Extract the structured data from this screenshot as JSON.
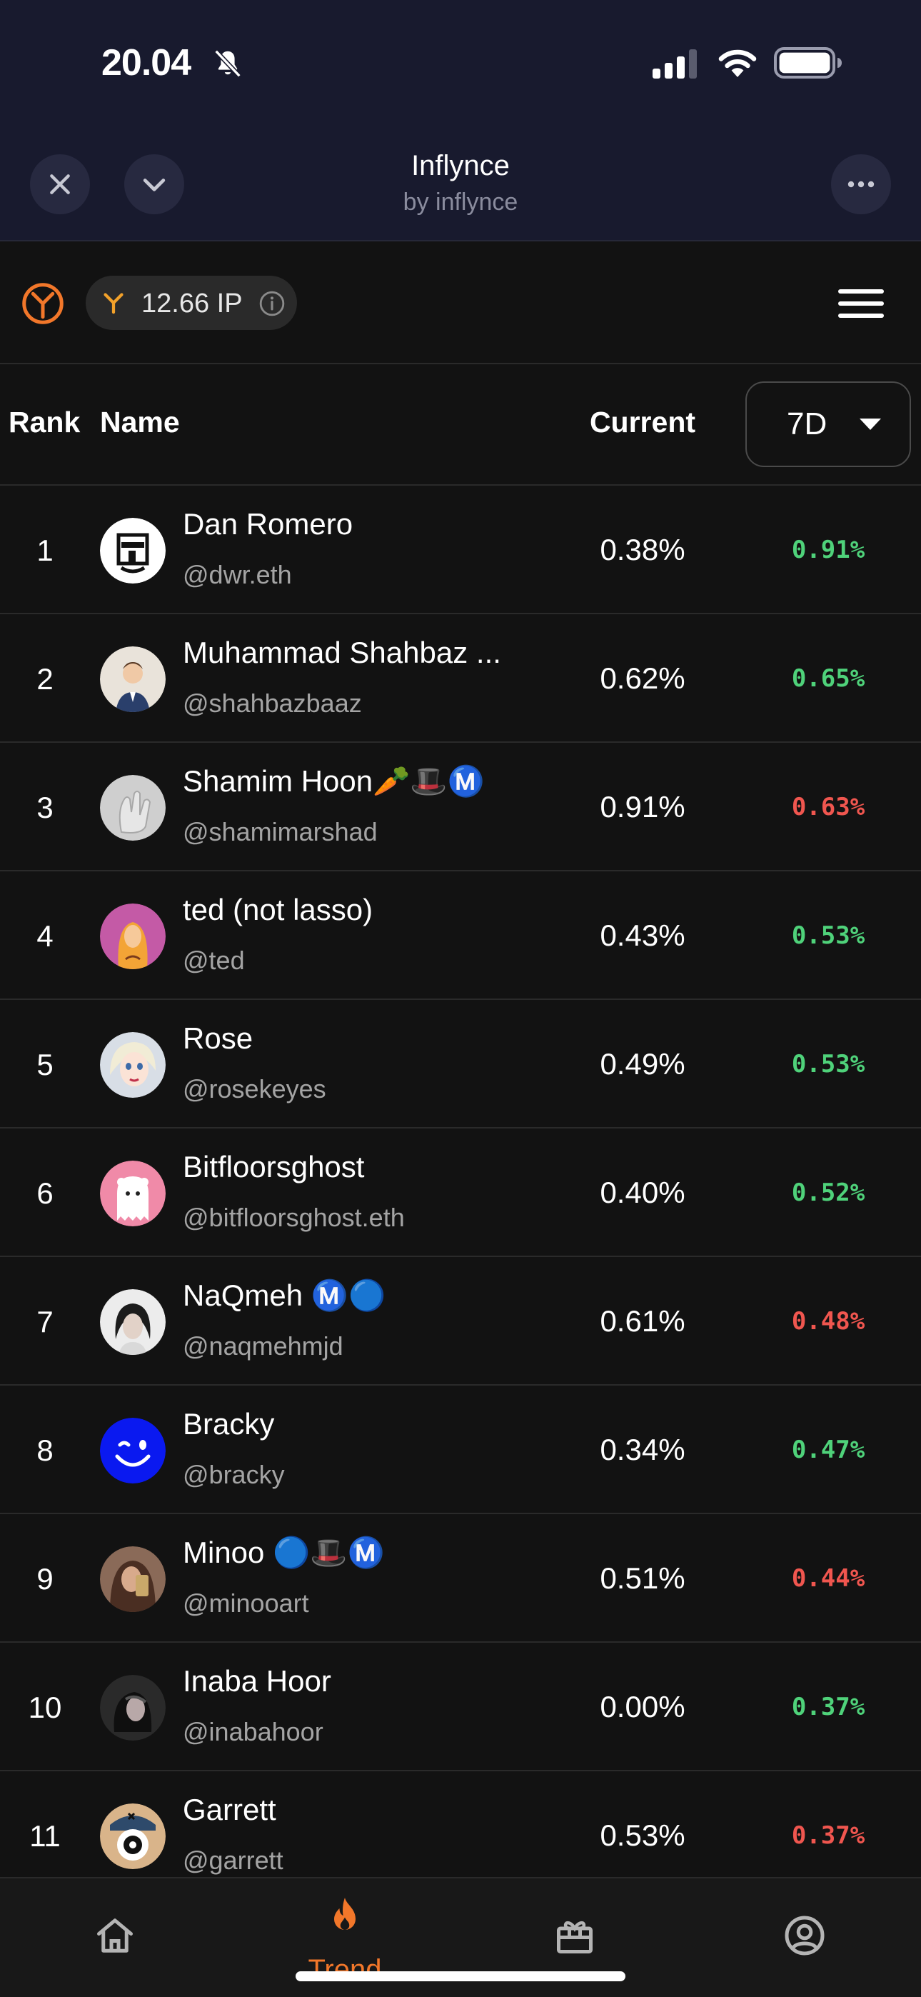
{
  "status_bar": {
    "time": "20.04"
  },
  "header": {
    "title": "Inflynce",
    "subtitle": "by inflynce"
  },
  "points": {
    "value": "12.66 IP"
  },
  "table": {
    "col_rank": "Rank",
    "col_name": "Name",
    "col_current": "Current",
    "period": "7D",
    "rows": [
      {
        "rank": "1",
        "name": "Dan Romero",
        "handle": "@dwr.eth",
        "current": "0.38%",
        "change": "0.91%",
        "trend": "up",
        "avatar": "blackwhite-face-avatar"
      },
      {
        "rank": "2",
        "name": "Muhammad Shahbaz ...",
        "handle": "@shahbazbaaz",
        "current": "0.62%",
        "change": "0.65%",
        "trend": "up",
        "avatar": "cartoon-man-avatar"
      },
      {
        "rank": "3",
        "name": "Shamim Hoon🥕🎩Ⓜ️",
        "handle": "@shamimarshad",
        "current": "0.91%",
        "change": "0.63%",
        "trend": "down",
        "avatar": "hand-avatar"
      },
      {
        "rank": "4",
        "name": "ted (not lasso)",
        "handle": "@ted",
        "current": "0.43%",
        "change": "0.53%",
        "trend": "up",
        "avatar": "pink-portrait-avatar"
      },
      {
        "rank": "5",
        "name": "Rose",
        "handle": "@rosekeyes",
        "current": "0.49%",
        "change": "0.53%",
        "trend": "up",
        "avatar": "anime-woman-avatar"
      },
      {
        "rank": "6",
        "name": "Bitfloorsghost",
        "handle": "@bitfloorsghost.eth",
        "current": "0.40%",
        "change": "0.52%",
        "trend": "up",
        "avatar": "ghost-avatar"
      },
      {
        "rank": "7",
        "name": "NaQmeh Ⓜ️🔵",
        "handle": "@naqmehmjd",
        "current": "0.61%",
        "change": "0.48%",
        "trend": "down",
        "avatar": "woman-photo-avatar"
      },
      {
        "rank": "8",
        "name": "Bracky",
        "handle": "@bracky",
        "current": "0.34%",
        "change": "0.47%",
        "trend": "up",
        "avatar": "blue-wink-avatar"
      },
      {
        "rank": "9",
        "name": "Minoo 🔵🎩Ⓜ️",
        "handle": "@minooart",
        "current": "0.51%",
        "change": "0.44%",
        "trend": "down",
        "avatar": "selfie-avatar"
      },
      {
        "rank": "10",
        "name": "Inaba Hoor",
        "handle": "@inabahoor",
        "current": "0.00%",
        "change": "0.37%",
        "trend": "up",
        "avatar": "dark-photo-avatar"
      },
      {
        "rank": "11",
        "name": "Garrett",
        "handle": "@garrett",
        "current": "0.53%",
        "change": "0.37%",
        "trend": "down",
        "avatar": "eyeball-avatar"
      }
    ]
  },
  "nav": {
    "active_label": "Trend"
  },
  "colors": {
    "up": "#4fd27a",
    "down": "#f0564f",
    "accent": "#f2772a"
  }
}
